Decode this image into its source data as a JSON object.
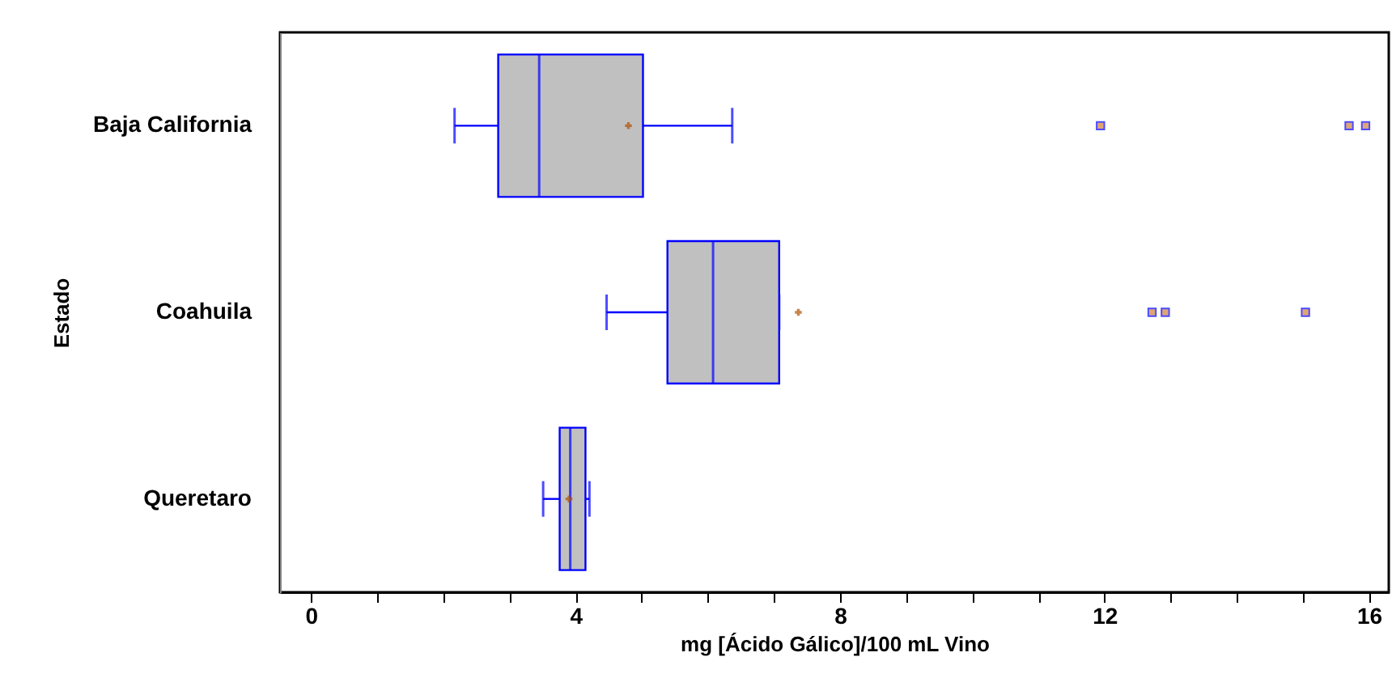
{
  "chart_data": {
    "type": "box",
    "orientation": "horizontal",
    "xlabel": "mg [Ácido Gálico]/100 mL Vino",
    "ylabel": "Estado",
    "categories": [
      "Baja California",
      "Coahuila",
      "Queretaro"
    ],
    "color": "#c0c0c0",
    "boxes": [
      {
        "low": 2.17,
        "q1": 2.83,
        "median": 3.45,
        "q3": 5.02,
        "high": 6.37,
        "mean": 4.8,
        "outliers": [
          11.94,
          15.7,
          15.95
        ]
      },
      {
        "low": 4.47,
        "q1": 5.39,
        "median": 6.08,
        "q3": 7.08,
        "high": 7.08,
        "mean": 7.37,
        "outliers": [
          12.72,
          12.92,
          15.04
        ]
      },
      {
        "low": 3.51,
        "q1": 3.76,
        "median": 3.92,
        "q3": 4.15,
        "high": 4.21,
        "mean": 3.9
      }
    ],
    "xlim": [
      -0.47,
      16.3
    ],
    "xticks": [
      0,
      {
        "value": 1,
        "label": null
      },
      {
        "value": 2,
        "label": null
      },
      {
        "value": 3,
        "label": null
      },
      4,
      {
        "value": 5,
        "label": null
      },
      {
        "value": 6,
        "label": null
      },
      {
        "value": 7,
        "label": null
      },
      8,
      {
        "value": 9,
        "label": null
      },
      {
        "value": 10,
        "label": null
      },
      {
        "value": 11,
        "label": null
      },
      12,
      {
        "value": 13,
        "label": null
      },
      {
        "value": 14,
        "label": null
      },
      {
        "value": 15,
        "label": null
      },
      16
    ],
    "grid": false
  }
}
